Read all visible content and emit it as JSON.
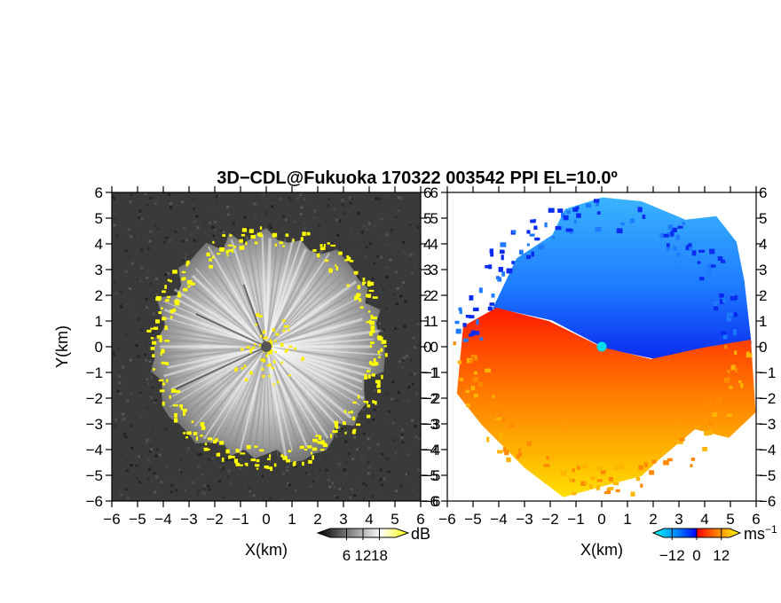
{
  "chart_data": {
    "title": "3D−CDL@Fukuoka 170322 003542 PPI EL=10.0º",
    "panels": [
      {
        "type": "heatmap",
        "variable": "reflectivity",
        "xlabel": "X(km)",
        "ylabel": "Y(km)",
        "xlim": [
          -6,
          6
        ],
        "ylim": [
          -6,
          6
        ],
        "xticks": [
          "−6",
          "−5",
          "−4",
          "−3",
          "−2",
          "−1",
          "0",
          "1",
          "2",
          "3",
          "4",
          "5",
          "6"
        ],
        "yticks": [
          "−6",
          "−5",
          "−4",
          "−3",
          "−2",
          "−1",
          "0",
          "1",
          "2",
          "3",
          "4",
          "5",
          "6"
        ],
        "colorbar": {
          "label": "dB",
          "ticks": [
            "6",
            "12",
            "18"
          ],
          "range": [
            0,
            24
          ],
          "colors": [
            "#000000",
            "#ffffff",
            "#ffff00"
          ]
        },
        "echo_radius_km": 4.3,
        "background_color": "#3a3a3a",
        "radar_site": [
          0,
          0
        ]
      },
      {
        "type": "heatmap",
        "variable": "radial_velocity",
        "xlabel": "X(km)",
        "ylabel": "",
        "xlim": [
          -6,
          6
        ],
        "ylim": [
          -6,
          6
        ],
        "xticks": [
          "−6",
          "−5",
          "−4",
          "−3",
          "−2",
          "−1",
          "0",
          "1",
          "2",
          "3",
          "4",
          "5",
          "6"
        ],
        "yticks": [
          "−6",
          "−5",
          "−4",
          "−3",
          "−2",
          "−1",
          "0",
          "1",
          "2",
          "3",
          "4",
          "5",
          "6"
        ],
        "colorbar": {
          "label": "ms",
          "label_sup": "−1",
          "ticks": [
            "−12",
            "0",
            "12"
          ],
          "range": [
            -16,
            16
          ],
          "colors": [
            "#00ffff",
            "#0066ff",
            "#0000ff",
            "#ff0000",
            "#ff8800",
            "#ffff00"
          ]
        },
        "approaching_color": "#1e7bff",
        "receding_color": "#ff6a00",
        "radar_site_color": "#00ddee",
        "radar_site": [
          0,
          0
        ]
      }
    ]
  }
}
